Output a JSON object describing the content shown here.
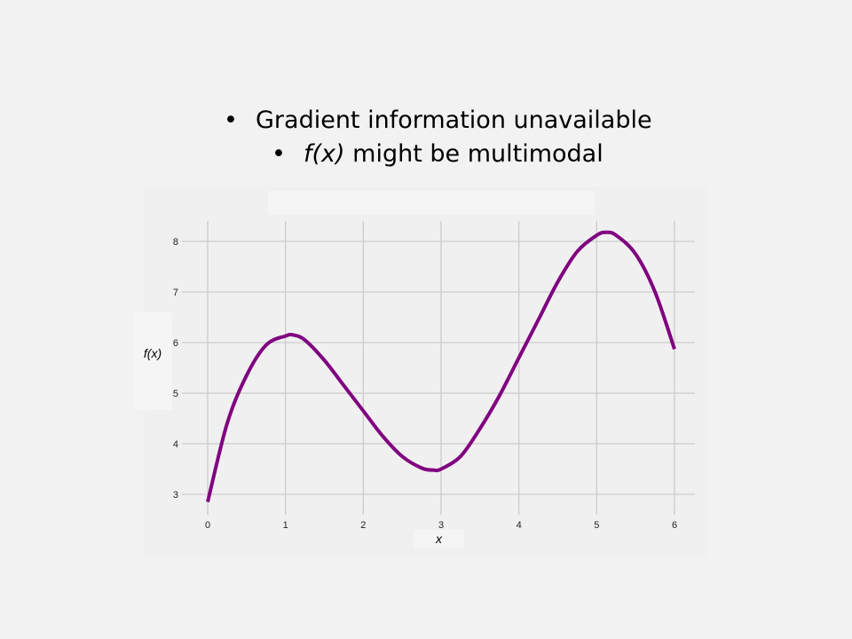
{
  "slide": {
    "bullet1": {
      "marker": "•",
      "text": "Gradient information unavailable"
    },
    "bullet2": {
      "marker": "•",
      "italic_part": "f(x)",
      "text": " might be multimodal"
    }
  },
  "chart_data": {
    "type": "line",
    "title": "",
    "xlabel": "x",
    "ylabel": "f(x)",
    "xlim": [
      0,
      6
    ],
    "ylim": [
      2.7,
      8.4
    ],
    "xticks": [
      0,
      1,
      2,
      3,
      4,
      5,
      6
    ],
    "yticks": [
      3,
      4,
      5,
      6,
      7,
      8
    ],
    "grid": true,
    "series": [
      {
        "color": "#800080",
        "x": [
          0,
          0.25,
          0.5,
          0.75,
          1.0,
          1.1,
          1.25,
          1.5,
          1.75,
          2.0,
          2.25,
          2.5,
          2.75,
          2.9,
          3.0,
          3.25,
          3.5,
          3.75,
          4.0,
          4.25,
          4.5,
          4.75,
          5.0,
          5.12,
          5.25,
          5.5,
          5.75,
          6.0
        ],
        "y": [
          2.85,
          4.4,
          5.35,
          5.95,
          6.13,
          6.15,
          6.05,
          5.65,
          5.15,
          4.65,
          4.15,
          3.75,
          3.52,
          3.48,
          3.5,
          3.75,
          4.3,
          4.95,
          5.7,
          6.45,
          7.2,
          7.8,
          8.12,
          8.18,
          8.12,
          7.75,
          7.0,
          5.87
        ]
      }
    ]
  }
}
